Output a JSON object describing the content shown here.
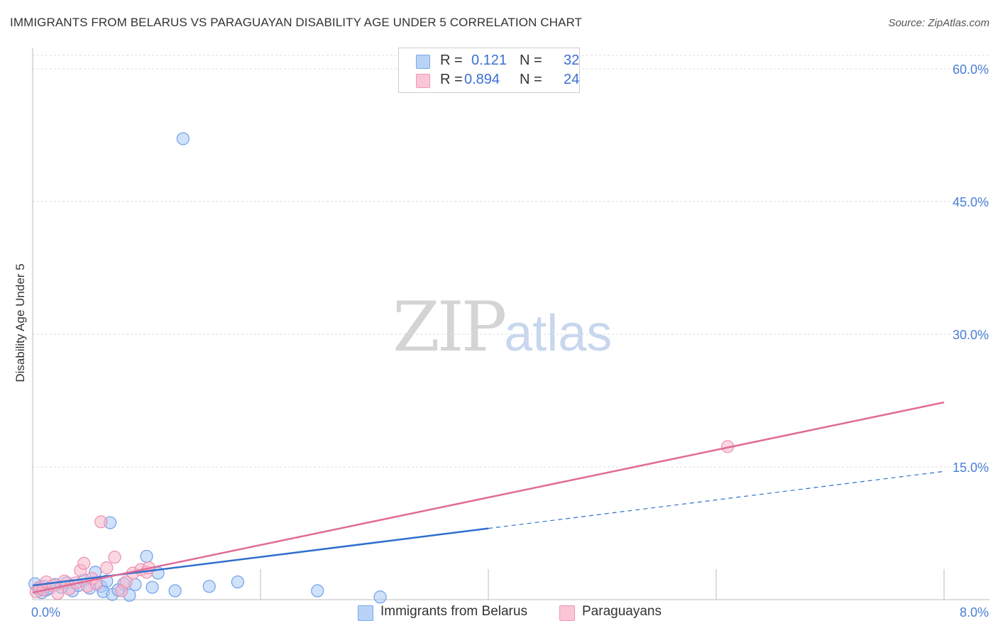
{
  "title": "IMMIGRANTS FROM BELARUS VS PARAGUAYAN DISABILITY AGE UNDER 5 CORRELATION CHART",
  "source": "Source: ZipAtlas.com",
  "watermark": {
    "zip": "ZIP",
    "atlas": "atlas"
  },
  "legend": [
    {
      "r_label": "R =",
      "r_value": "0.121",
      "n_label": "N =",
      "n_value": "32",
      "color": "#a9c8f5"
    },
    {
      "r_label": "R =",
      "r_value": "0.894",
      "n_label": "N =",
      "n_value": "24",
      "color": "#f7b6cb"
    }
  ],
  "chart_data": {
    "type": "scatter",
    "title": "IMMIGRANTS FROM BELARUS VS PARAGUAYAN DISABILITY AGE UNDER 5 CORRELATION CHART",
    "xlabel": "",
    "ylabel": "Disability Age Under 5",
    "xlim": [
      0,
      8
    ],
    "ylim": [
      0,
      60
    ],
    "x_tick_labels": [
      "0.0%",
      "8.0%"
    ],
    "y_tick_values": [
      15,
      30,
      45,
      60
    ],
    "y_tick_labels": [
      "15.0%",
      "30.0%",
      "45.0%",
      "60.0%"
    ],
    "grid": true,
    "series": [
      {
        "name": "Immigrants from Belarus",
        "color": "#6fa0e8",
        "fill": "#a9c8f5",
        "line_color": "#2f6fce",
        "trend": {
          "x0": 0.0,
          "y0": 1.6,
          "x1": 8.0,
          "y1": 14.5,
          "solid_until_x": 4.0
        },
        "points": [
          [
            0.02,
            1.8
          ],
          [
            0.05,
            1.2
          ],
          [
            0.08,
            0.8
          ],
          [
            0.1,
            1.5
          ],
          [
            0.12,
            1.1
          ],
          [
            0.15,
            1.3
          ],
          [
            0.2,
            1.7
          ],
          [
            0.25,
            1.4
          ],
          [
            0.3,
            1.9
          ],
          [
            0.35,
            1.0
          ],
          [
            0.4,
            1.6
          ],
          [
            0.45,
            2.2
          ],
          [
            0.5,
            1.3
          ],
          [
            0.55,
            3.1
          ],
          [
            0.6,
            1.5
          ],
          [
            0.62,
            0.9
          ],
          [
            0.65,
            2.1
          ],
          [
            0.7,
            0.6
          ],
          [
            0.68,
            8.7
          ],
          [
            0.75,
            1.1
          ],
          [
            0.8,
            1.8
          ],
          [
            0.85,
            0.5
          ],
          [
            0.9,
            1.7
          ],
          [
            1.0,
            4.9
          ],
          [
            1.05,
            1.4
          ],
          [
            1.1,
            3.0
          ],
          [
            1.25,
            1.0
          ],
          [
            1.32,
            52.1
          ],
          [
            1.55,
            1.5
          ],
          [
            1.8,
            2.0
          ],
          [
            2.5,
            1.0
          ],
          [
            3.05,
            0.3
          ]
        ]
      },
      {
        "name": "Paraguayans",
        "color": "#ee8fb0",
        "fill": "#f7b6cb",
        "line_color": "#e06b96",
        "trend": {
          "x0": 0.0,
          "y0": 0.8,
          "x1": 8.0,
          "y1": 22.3,
          "solid_until_x": 8.0
        },
        "points": [
          [
            0.03,
            0.9
          ],
          [
            0.06,
            1.4
          ],
          [
            0.09,
            1.1
          ],
          [
            0.12,
            2.0
          ],
          [
            0.18,
            1.6
          ],
          [
            0.22,
            0.7
          ],
          [
            0.28,
            2.1
          ],
          [
            0.32,
            1.2
          ],
          [
            0.38,
            1.9
          ],
          [
            0.42,
            3.3
          ],
          [
            0.45,
            4.1
          ],
          [
            0.48,
            1.5
          ],
          [
            0.52,
            2.4
          ],
          [
            0.56,
            1.8
          ],
          [
            0.6,
            8.8
          ],
          [
            0.65,
            3.6
          ],
          [
            0.72,
            4.8
          ],
          [
            0.78,
            1.0
          ],
          [
            0.82,
            2.0
          ],
          [
            0.88,
            3.0
          ],
          [
            0.95,
            3.4
          ],
          [
            1.0,
            3.1
          ],
          [
            1.02,
            3.6
          ],
          [
            6.1,
            17.3
          ]
        ]
      }
    ]
  }
}
